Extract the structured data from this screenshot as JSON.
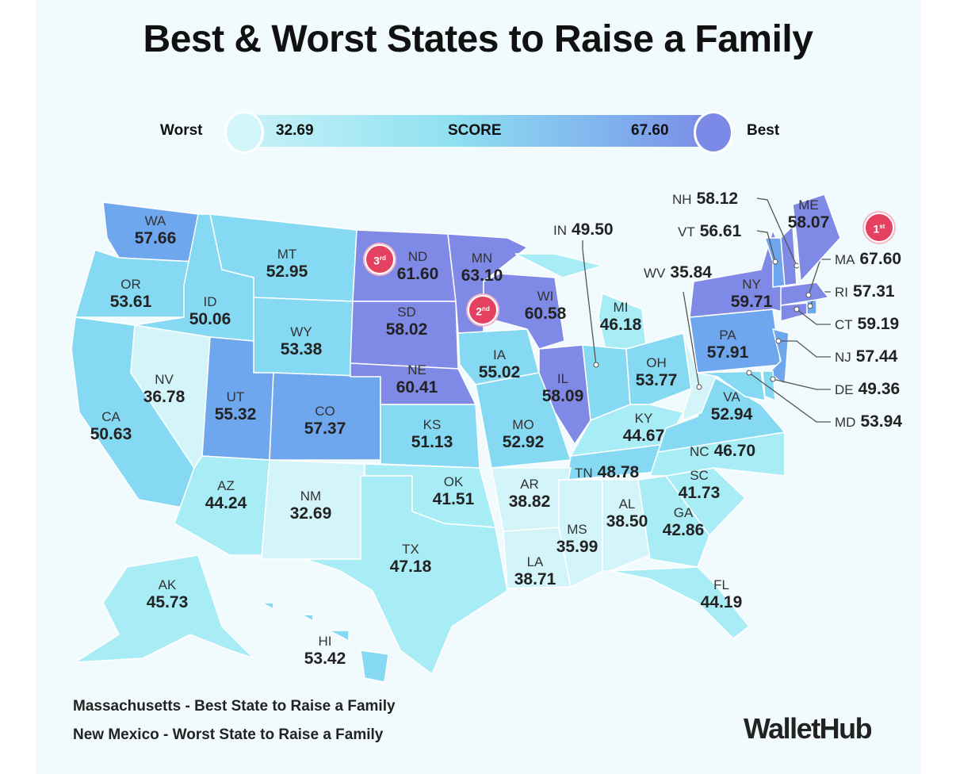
{
  "title": "Best & Worst States to Raise a Family",
  "legend": {
    "worst_label": "Worst",
    "best_label": "Best",
    "min": "32.69",
    "max": "67.60",
    "score_label": "SCORE"
  },
  "colors": {
    "bin1": "#d3f5fa",
    "bin2": "#a8ecf6",
    "bin3": "#86d9f2",
    "bin4": "#6ea7ee",
    "bin5": "#7f89e6",
    "badge": "#e3415f"
  },
  "states": [
    {
      "abbr": "WA",
      "score": "57.66"
    },
    {
      "abbr": "OR",
      "score": "53.61"
    },
    {
      "abbr": "CA",
      "score": "50.63"
    },
    {
      "abbr": "NV",
      "score": "36.78"
    },
    {
      "abbr": "ID",
      "score": "50.06"
    },
    {
      "abbr": "MT",
      "score": "52.95"
    },
    {
      "abbr": "WY",
      "score": "53.38"
    },
    {
      "abbr": "UT",
      "score": "55.32"
    },
    {
      "abbr": "CO",
      "score": "57.37"
    },
    {
      "abbr": "AZ",
      "score": "44.24"
    },
    {
      "abbr": "NM",
      "score": "32.69"
    },
    {
      "abbr": "ND",
      "score": "61.60"
    },
    {
      "abbr": "SD",
      "score": "58.02"
    },
    {
      "abbr": "NE",
      "score": "60.41"
    },
    {
      "abbr": "KS",
      "score": "51.13"
    },
    {
      "abbr": "OK",
      "score": "41.51"
    },
    {
      "abbr": "TX",
      "score": "47.18"
    },
    {
      "abbr": "MN",
      "score": "63.10"
    },
    {
      "abbr": "IA",
      "score": "55.02"
    },
    {
      "abbr": "MO",
      "score": "52.92"
    },
    {
      "abbr": "WI",
      "score": "60.58"
    },
    {
      "abbr": "IL",
      "score": "58.09"
    },
    {
      "abbr": "MI",
      "score": "46.18"
    },
    {
      "abbr": "IN",
      "score": "49.50"
    },
    {
      "abbr": "OH",
      "score": "53.77"
    },
    {
      "abbr": "KY",
      "score": "44.67"
    },
    {
      "abbr": "TN",
      "score": "48.78"
    },
    {
      "abbr": "AR",
      "score": "38.82"
    },
    {
      "abbr": "LA",
      "score": "38.71"
    },
    {
      "abbr": "MS",
      "score": "35.99"
    },
    {
      "abbr": "AL",
      "score": "38.50"
    },
    {
      "abbr": "GA",
      "score": "42.86"
    },
    {
      "abbr": "FL",
      "score": "44.19"
    },
    {
      "abbr": "SC",
      "score": "41.73"
    },
    {
      "abbr": "NC",
      "score": "46.70"
    },
    {
      "abbr": "VA",
      "score": "52.94"
    },
    {
      "abbr": "WV",
      "score": "35.84"
    },
    {
      "abbr": "PA",
      "score": "57.91"
    },
    {
      "abbr": "NY",
      "score": "59.71"
    },
    {
      "abbr": "NJ",
      "score": "57.44"
    },
    {
      "abbr": "DE",
      "score": "49.36"
    },
    {
      "abbr": "MD",
      "score": "53.94"
    },
    {
      "abbr": "CT",
      "score": "59.19"
    },
    {
      "abbr": "RI",
      "score": "57.31"
    },
    {
      "abbr": "MA",
      "score": "67.60"
    },
    {
      "abbr": "VT",
      "score": "56.61"
    },
    {
      "abbr": "NH",
      "score": "58.12"
    },
    {
      "abbr": "ME",
      "score": "58.07"
    },
    {
      "abbr": "AK",
      "score": "45.73"
    },
    {
      "abbr": "HI",
      "score": "53.42"
    }
  ],
  "badges": [
    {
      "rank": "1",
      "suffix": "st",
      "state": "MA"
    },
    {
      "rank": "2",
      "suffix": "nd",
      "state": "MN"
    },
    {
      "rank": "3",
      "suffix": "rd",
      "state": "ND"
    }
  ],
  "footer": {
    "best": "Massachusetts - Best State to Raise a Family",
    "worst": "New Mexico - Worst State to Raise a Family"
  },
  "logo": "WalletHub"
}
